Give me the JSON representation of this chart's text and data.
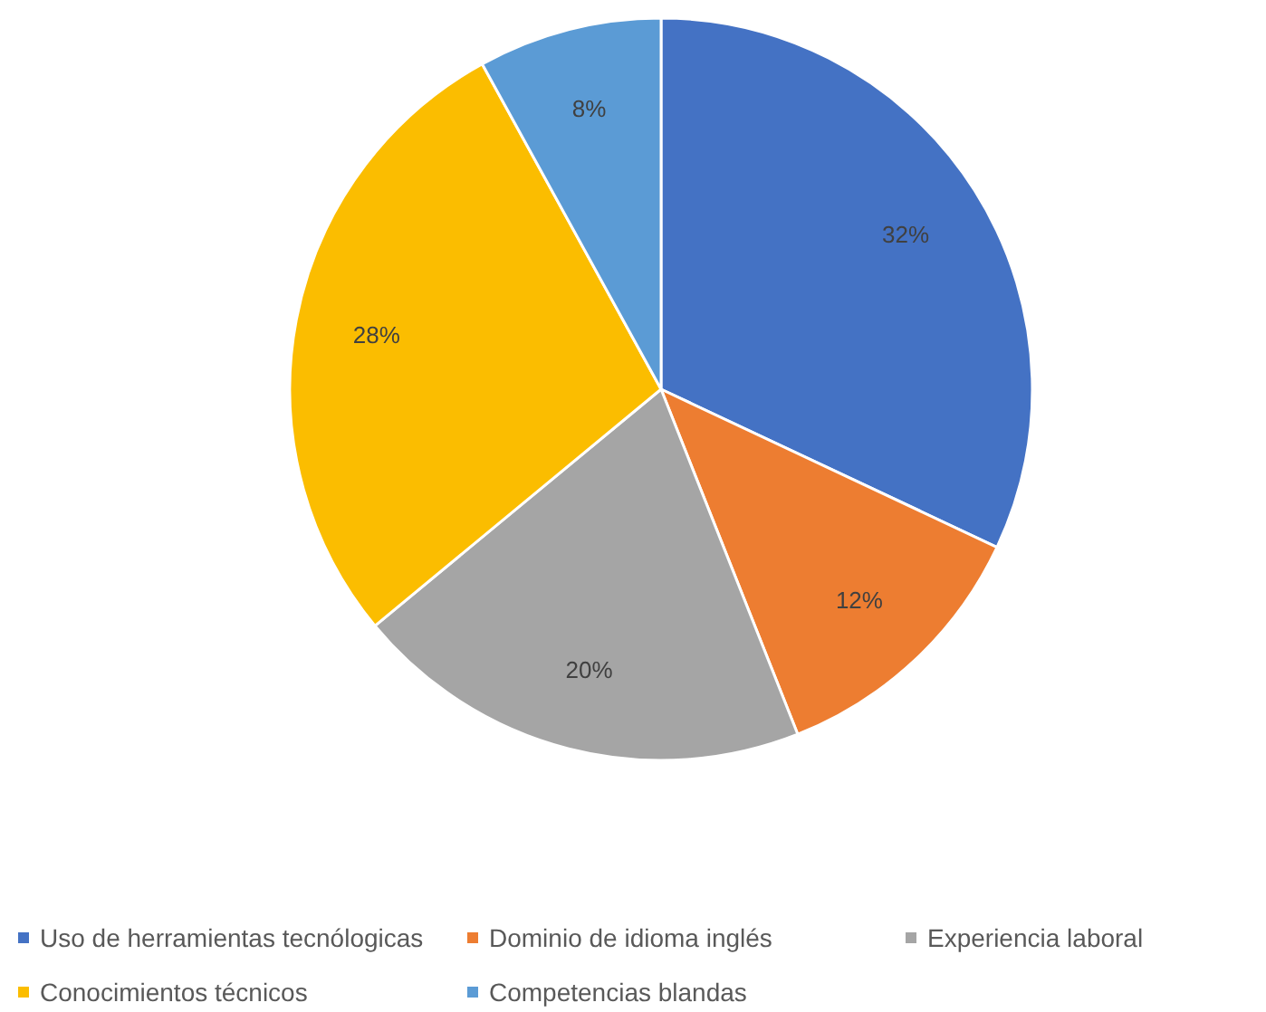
{
  "chart_data": {
    "type": "pie",
    "categories": [
      "Uso de herramientas tecnólogicas",
      "Dominio de idioma inglés",
      "Experiencia laboral",
      "Conocimientos técnicos",
      "Competencias blandas"
    ],
    "values": [
      32,
      12,
      20,
      28,
      8
    ],
    "colors": [
      "#4472c4",
      "#ed7d31",
      "#a5a5a5",
      "#fbbd00",
      "#5b9bd5"
    ],
    "value_labels": [
      "32%",
      "12%",
      "20%",
      "28%",
      "8%"
    ],
    "legend": "bottom"
  }
}
